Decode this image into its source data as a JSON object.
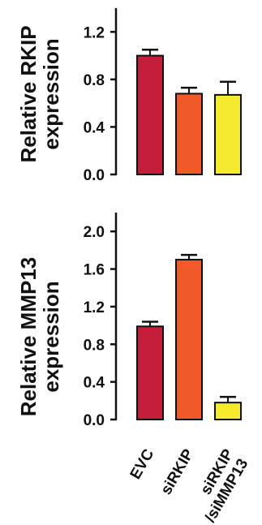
{
  "chart_data": [
    {
      "type": "bar",
      "ylabel": "Relative RKIP expression",
      "ylabel_lines": [
        "Relative RKIP",
        "expression"
      ],
      "categories": [
        "EVC",
        "siRKIP",
        "siRKIP/siMMP13"
      ],
      "values": [
        1.0,
        0.68,
        0.67
      ],
      "errors": [
        0.05,
        0.05,
        0.11
      ],
      "colors": [
        "#c41e3a",
        "#f05a28",
        "#f5ea2e"
      ],
      "ylim": [
        0,
        1.4
      ],
      "yticks": [
        "0.0",
        "0.4",
        "0.8",
        "1.2"
      ],
      "grid": false,
      "legend": "none"
    },
    {
      "type": "bar",
      "ylabel": "Relative MMP13 expression",
      "ylabel_lines": [
        "Relative MMP13",
        "expression"
      ],
      "categories": [
        "EVC",
        "siRKIP",
        "siRKIP/siMMP13"
      ],
      "category_lines": [
        [
          "EVC"
        ],
        [
          "siRKIP"
        ],
        [
          "siRKIP",
          "/siMMP13"
        ]
      ],
      "values": [
        0.99,
        1.7,
        0.18
      ],
      "errors": [
        0.05,
        0.05,
        0.06
      ],
      "colors": [
        "#c41e3a",
        "#f05a28",
        "#f5ea2e"
      ],
      "ylim": [
        0,
        2.2
      ],
      "yticks": [
        "0.0",
        "0.4",
        "0.8",
        "1.2",
        "1.6",
        "2.0"
      ],
      "grid": false,
      "legend": "none"
    }
  ]
}
